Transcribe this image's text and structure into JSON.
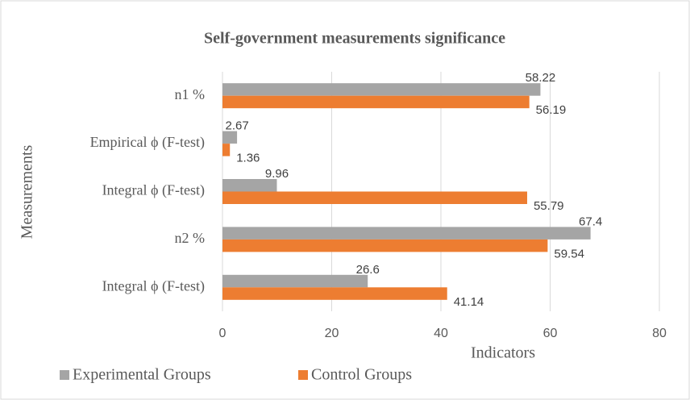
{
  "chart_data": {
    "type": "bar",
    "orientation": "horizontal",
    "title": "Self-government measurements significance",
    "xlabel": "Indicators",
    "ylabel": "Measurements",
    "categories": [
      "n1 %",
      "Empirical ϕ (F-test)",
      "Integral ϕ (F-test)",
      "n2 %",
      "Integral ϕ (F-test)"
    ],
    "series": [
      {
        "name": "Experimental Groups",
        "color": "#a5a5a5",
        "values": [
          58.22,
          2.67,
          9.96,
          67.4,
          26.6
        ]
      },
      {
        "name": "Control Groups",
        "color": "#ed7d31",
        "values": [
          56.19,
          1.36,
          55.79,
          59.54,
          41.14
        ]
      }
    ],
    "xlim": [
      0,
      80
    ],
    "xticks": [
      0,
      20,
      40,
      60,
      80
    ],
    "grid": true,
    "legend": "bottom"
  }
}
